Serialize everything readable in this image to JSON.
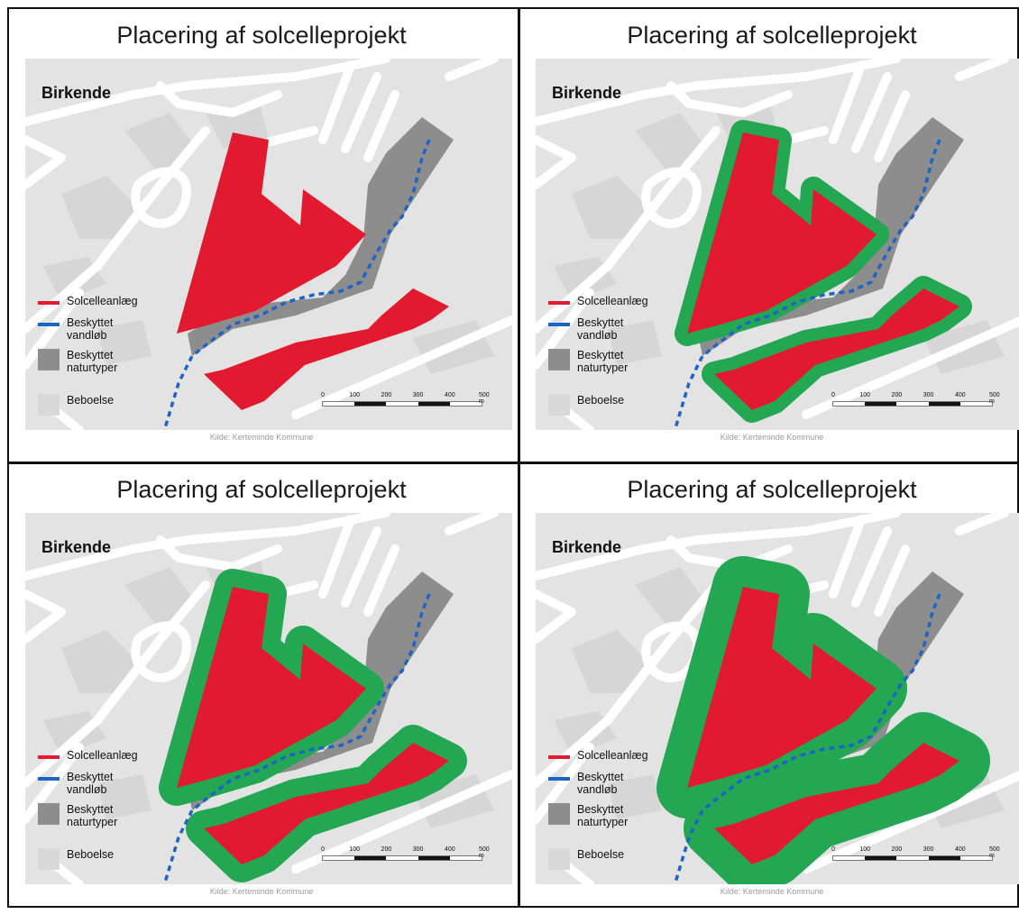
{
  "panels": [
    {
      "title": "Placering af solcelleprojekt",
      "variant": "none"
    },
    {
      "title": "Placering af solcelleprojekt",
      "variant": "thin"
    },
    {
      "title": "Placering af solcelleprojekt",
      "variant": "medium"
    },
    {
      "title": "Placering af solcelleprojekt",
      "variant": "thick"
    }
  ],
  "map": {
    "place_name": "Birkende",
    "source": "Kilde: Kerteminde Kommune",
    "legend": [
      {
        "label": "Solcelleanlæg",
        "kind": "line",
        "color": "#e11a2f"
      },
      {
        "label": "Beskyttet vandløb",
        "kind": "line",
        "color": "#1e63c8"
      },
      {
        "label": "Beskyttet naturtyper",
        "kind": "box",
        "color": "#8d8d8d"
      },
      {
        "label": "Beboelse",
        "kind": "box",
        "color": "#d8d8d8"
      }
    ],
    "scale_labels": [
      "0",
      "100",
      "200",
      "300",
      "400",
      "500 m"
    ]
  },
  "colors": {
    "solar": "#e11a2f",
    "buffer": "#24a753",
    "stream": "#1e63c8",
    "nature": "#8d8d8d",
    "road": "#ffffff",
    "background": "#e3e3e3"
  }
}
